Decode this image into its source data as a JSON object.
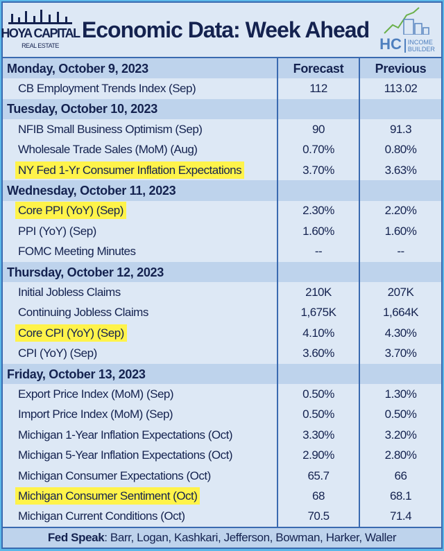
{
  "header": {
    "title": "Economic Data: Week Ahead",
    "logo_left": {
      "main": "HOYA CAPITAL",
      "sub": "REAL ESTATE"
    },
    "logo_right": {
      "main": "HC",
      "sub1": "INCOME",
      "sub2": "BUILDER"
    }
  },
  "columns": {
    "forecast": "Forecast",
    "previous": "Previous"
  },
  "colors": {
    "highlight": "#fff34a",
    "navy": "#14224f",
    "border": "#3a6ab0",
    "day_row": "#bed3ec",
    "background": "#dde8f5"
  },
  "days": [
    {
      "label": "Monday, October 9, 2023",
      "rows": [
        {
          "name": "CB Employment Trends Index (Sep)",
          "forecast": "112",
          "previous": "113.02",
          "highlight": false
        }
      ]
    },
    {
      "label": "Tuesday, October 10, 2023",
      "rows": [
        {
          "name": "NFIB Small Business Optimism (Sep)",
          "forecast": "90",
          "previous": "91.3",
          "highlight": false
        },
        {
          "name": "Wholesale Trade Sales (MoM) (Aug)",
          "forecast": "0.70%",
          "previous": "0.80%",
          "highlight": false
        },
        {
          "name": "NY Fed 1-Yr Consumer Inflation Expectations",
          "forecast": "3.70%",
          "previous": "3.63%",
          "highlight": true
        }
      ]
    },
    {
      "label": "Wednesday, October 11, 2023",
      "rows": [
        {
          "name": "Core PPI (YoY) (Sep)",
          "forecast": "2.30%",
          "previous": "2.20%",
          "highlight": true
        },
        {
          "name": "PPI (YoY) (Sep)",
          "forecast": "1.60%",
          "previous": "1.60%",
          "highlight": false
        },
        {
          "name": "FOMC Meeting Minutes",
          "forecast": "--",
          "previous": "--",
          "highlight": false
        }
      ]
    },
    {
      "label": "Thursday, October 12, 2023",
      "rows": [
        {
          "name": "Initial Jobless Claims",
          "forecast": "210K",
          "previous": "207K",
          "highlight": false
        },
        {
          "name": "Continuing Jobless Claims",
          "forecast": "1,675K",
          "previous": "1,664K",
          "highlight": false
        },
        {
          "name": "Core CPI (YoY) (Sep)",
          "forecast": "4.10%",
          "previous": "4.30%",
          "highlight": true
        },
        {
          "name": "CPI (YoY) (Sep)",
          "forecast": "3.60%",
          "previous": "3.70%",
          "highlight": false
        }
      ]
    },
    {
      "label": "Friday, October 13, 2023",
      "rows": [
        {
          "name": "Export Price Index (MoM) (Sep)",
          "forecast": "0.50%",
          "previous": "1.30%",
          "highlight": false
        },
        {
          "name": "Import Price Index (MoM) (Sep)",
          "forecast": "0.50%",
          "previous": "0.50%",
          "highlight": false
        },
        {
          "name": "Michigan 1-Year Inflation Expectations (Oct)",
          "forecast": "3.30%",
          "previous": "3.20%",
          "highlight": false
        },
        {
          "name": "Michigan 5-Year Inflation Expectations (Oct)",
          "forecast": "2.90%",
          "previous": "2.80%",
          "highlight": false
        },
        {
          "name": "Michigan Consumer Expectations (Oct)",
          "forecast": "65.7",
          "previous": "66",
          "highlight": false
        },
        {
          "name": "Michigan Consumer Sentiment (Oct)",
          "forecast": "68",
          "previous": "68.1",
          "highlight": true
        },
        {
          "name": "Michigan Current Conditions (Oct)",
          "forecast": "70.5",
          "previous": "71.4",
          "highlight": false
        }
      ]
    }
  ],
  "footer": {
    "label": "Fed Speak",
    "text": ": Barr, Logan, Kashkari, Jefferson, Bowman, Harker, Waller"
  }
}
